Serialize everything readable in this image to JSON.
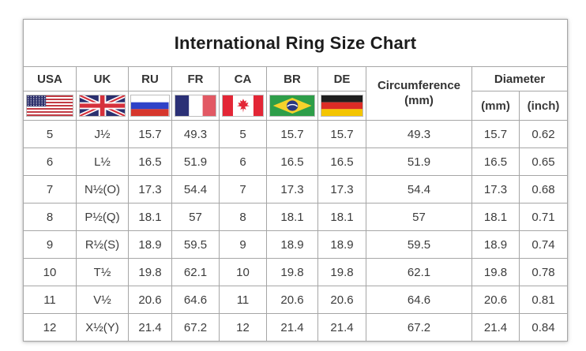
{
  "title": "International Ring Size Chart",
  "header": {
    "countries": [
      {
        "label": "USA",
        "flag": "usa-flag"
      },
      {
        "label": "UK",
        "flag": "uk-flag"
      },
      {
        "label": "RU",
        "flag": "russia-flag"
      },
      {
        "label": "FR",
        "flag": "france-flag"
      },
      {
        "label": "CA",
        "flag": "canada-flag"
      },
      {
        "label": "BR",
        "flag": "brazil-flag"
      },
      {
        "label": "DE",
        "flag": "germany-flag"
      }
    ],
    "circumference": {
      "line1": "Circumference",
      "line2": "(mm)"
    },
    "diameter": {
      "label": "Diameter",
      "mm": "(mm)",
      "inch": "(inch)"
    }
  },
  "chart_data": {
    "type": "table",
    "title": "International Ring Size Chart",
    "columns": [
      "USA",
      "UK",
      "RU",
      "FR",
      "CA",
      "BR",
      "DE",
      "Circumference (mm)",
      "Diameter (mm)",
      "Diameter (inch)"
    ],
    "rows": [
      [
        "5",
        "J½",
        "15.7",
        "49.3",
        "5",
        "15.7",
        "15.7",
        "49.3",
        "15.7",
        "0.62"
      ],
      [
        "6",
        "L½",
        "16.5",
        "51.9",
        "6",
        "16.5",
        "16.5",
        "51.9",
        "16.5",
        "0.65"
      ],
      [
        "7",
        "N½(O)",
        "17.3",
        "54.4",
        "7",
        "17.3",
        "17.3",
        "54.4",
        "17.3",
        "0.68"
      ],
      [
        "8",
        "P½(Q)",
        "18.1",
        "57",
        "8",
        "18.1",
        "18.1",
        "57",
        "18.1",
        "0.71"
      ],
      [
        "9",
        "R½(S)",
        "18.9",
        "59.5",
        "9",
        "18.9",
        "18.9",
        "59.5",
        "18.9",
        "0.74"
      ],
      [
        "10",
        "T½",
        "19.8",
        "62.1",
        "10",
        "19.8",
        "19.8",
        "62.1",
        "19.8",
        "0.78"
      ],
      [
        "11",
        "V½",
        "20.6",
        "64.6",
        "11",
        "20.6",
        "20.6",
        "64.6",
        "20.6",
        "0.81"
      ],
      [
        "12",
        "X½(Y)",
        "21.4",
        "67.2",
        "12",
        "21.4",
        "21.4",
        "67.2",
        "21.4",
        "0.84"
      ]
    ]
  },
  "colors": {
    "grid_line": "#a6a6a6",
    "text": "#3a3a3a",
    "title_text": "#1c1c1c"
  }
}
